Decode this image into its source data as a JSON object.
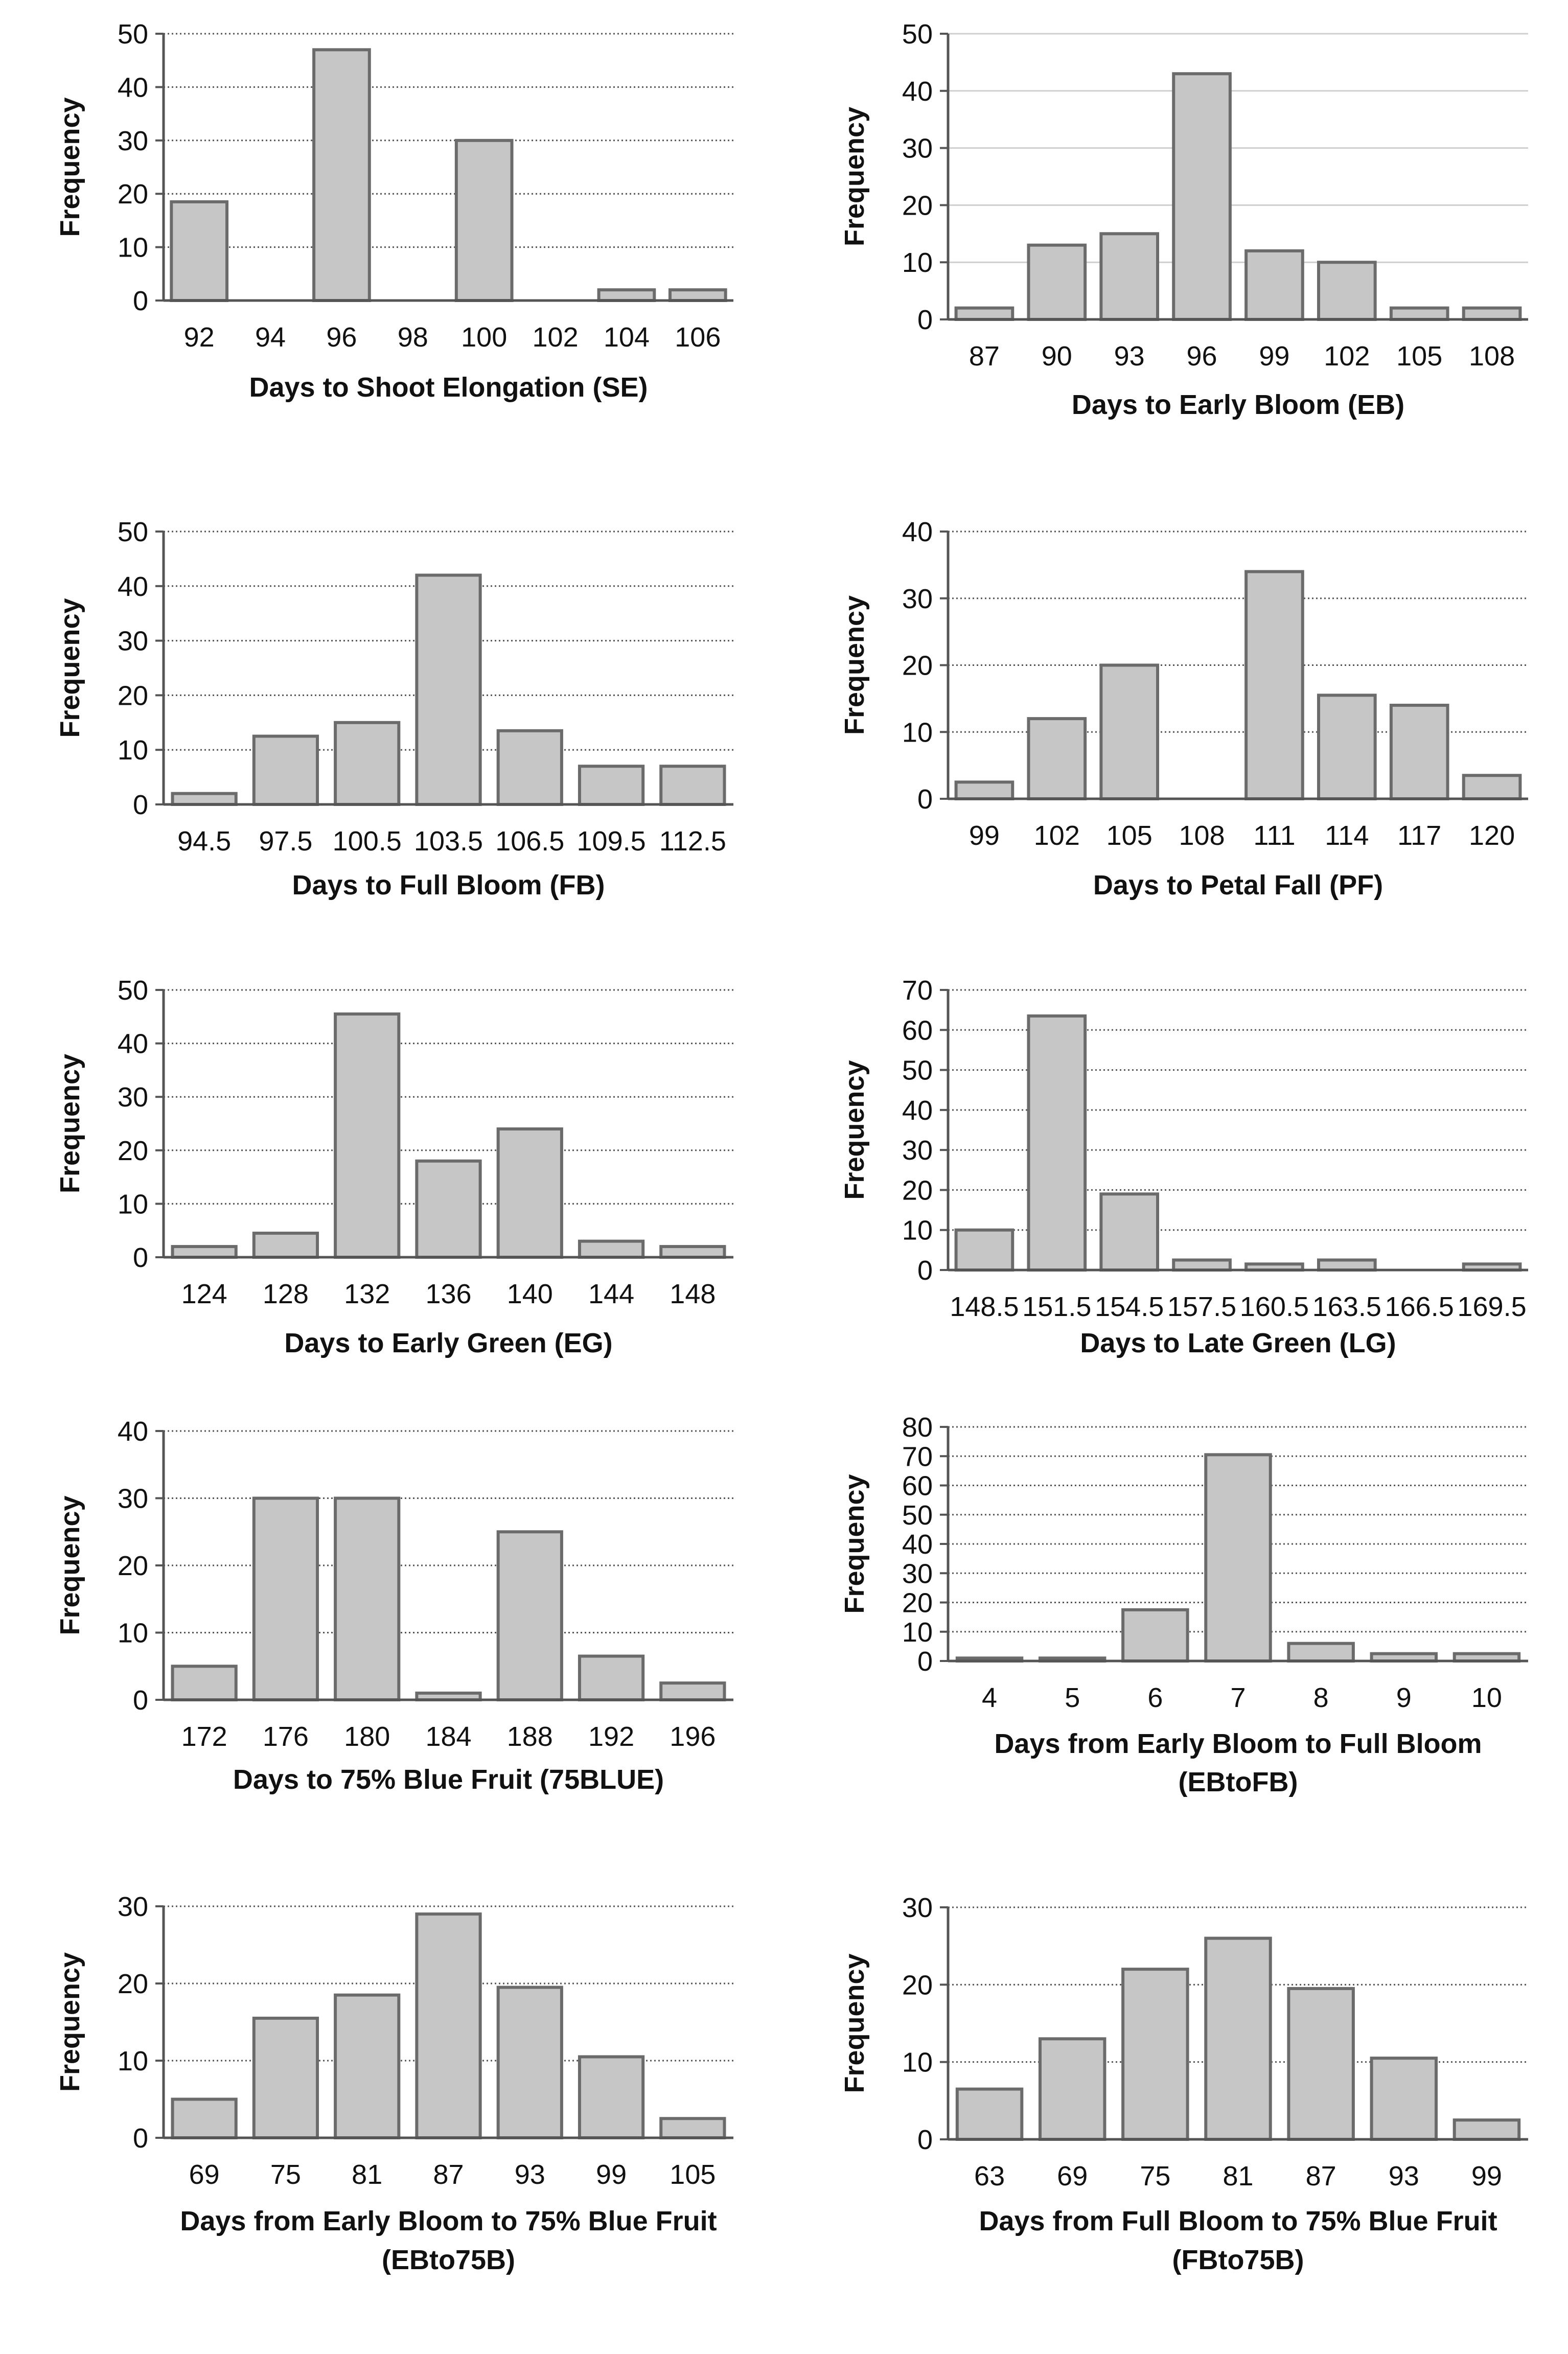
{
  "colors": {
    "bar_fill": "#c6c6c6",
    "bar_stroke": "#6b6b6b",
    "axis": "#555555",
    "grid_dotted": "#555555",
    "grid_solid": "#cfcfcf"
  },
  "chart_data": [
    {
      "type": "bar",
      "title": "",
      "xlabel": "Days to Shoot Elongation (SE)",
      "ylabel": "Frequency",
      "categories": [
        "92",
        "94",
        "96",
        "98",
        "100",
        "102",
        "104",
        "106"
      ],
      "values": [
        18.5,
        0,
        47,
        0,
        30,
        0,
        2,
        2
      ],
      "ylim": [
        0,
        50
      ],
      "yticks": [
        0,
        10,
        20,
        30,
        40,
        50
      ],
      "grid": "dotted"
    },
    {
      "type": "bar",
      "title": "",
      "xlabel": "Days to Early Bloom (EB)",
      "ylabel": "Frequency",
      "categories": [
        "87",
        "90",
        "93",
        "96",
        "99",
        "102",
        "105",
        "108"
      ],
      "values": [
        2,
        13,
        15,
        43,
        12,
        10,
        2,
        2
      ],
      "ylim": [
        0,
        50
      ],
      "yticks": [
        0,
        10,
        20,
        30,
        40,
        50
      ],
      "grid": "solid"
    },
    {
      "type": "bar",
      "title": "",
      "xlabel": "Days to Full Bloom (FB)",
      "ylabel": "Frequency",
      "categories": [
        "94.5",
        "97.5",
        "100.5",
        "103.5",
        "106.5",
        "109.5",
        "112.5"
      ],
      "values": [
        2,
        12.5,
        15,
        42,
        13.5,
        7,
        7
      ],
      "ylim": [
        0,
        50
      ],
      "yticks": [
        0,
        10,
        20,
        30,
        40,
        50
      ],
      "grid": "dotted"
    },
    {
      "type": "bar",
      "title": "",
      "xlabel": "Days to Petal Fall (PF)",
      "ylabel": "Frequency",
      "categories": [
        "99",
        "102",
        "105",
        "108",
        "111",
        "114",
        "117",
        "120"
      ],
      "values": [
        2.5,
        12,
        20,
        0,
        34,
        15.5,
        14,
        3.5
      ],
      "ylim": [
        0,
        40
      ],
      "yticks": [
        0,
        10,
        20,
        30,
        40
      ],
      "grid": "dotted"
    },
    {
      "type": "bar",
      "title": "",
      "xlabel": "Days to Early Green (EG)",
      "ylabel": "Frequency",
      "categories": [
        "124",
        "128",
        "132",
        "136",
        "140",
        "144",
        "148"
      ],
      "values": [
        2,
        4.5,
        45.5,
        18,
        24,
        3,
        2
      ],
      "ylim": [
        0,
        50
      ],
      "yticks": [
        0,
        10,
        20,
        30,
        40,
        50
      ],
      "grid": "dotted"
    },
    {
      "type": "bar",
      "title": "",
      "xlabel": "Days to Late Green (LG)",
      "ylabel": "Frequency",
      "categories": [
        "148.5",
        "151.5",
        "154.5",
        "157.5",
        "160.5",
        "163.5",
        "166.5",
        "169.5"
      ],
      "values": [
        10,
        63.5,
        19,
        2.5,
        1.5,
        2.5,
        0,
        1.5
      ],
      "ylim": [
        0,
        70
      ],
      "yticks": [
        0,
        10,
        20,
        30,
        40,
        50,
        60,
        70
      ],
      "grid": "dotted"
    },
    {
      "type": "bar",
      "title": "",
      "xlabel": "Days to 75% Blue Fruit (75BLUE)",
      "ylabel": "Frequency",
      "categories": [
        "172",
        "176",
        "180",
        "184",
        "188",
        "192",
        "196"
      ],
      "values": [
        5,
        30,
        30,
        1,
        25,
        6.5,
        2.5
      ],
      "ylim": [
        0,
        40
      ],
      "yticks": [
        0,
        10,
        20,
        30,
        40
      ],
      "grid": "dotted"
    },
    {
      "type": "bar",
      "title": "",
      "xlabel": "Days from Early Bloom to Full Bloom (EBtoFB)",
      "ylabel": "Frequency",
      "categories": [
        "4",
        "5",
        "6",
        "7",
        "8",
        "9",
        "10"
      ],
      "values": [
        1,
        1,
        17.5,
        70.5,
        6,
        2.5,
        2.5
      ],
      "ylim": [
        0,
        80
      ],
      "yticks": [
        0,
        10,
        20,
        30,
        40,
        50,
        60,
        70,
        80
      ],
      "grid": "dotted"
    },
    {
      "type": "bar",
      "title": "",
      "xlabel": "Days from Early Bloom to 75% Blue Fruit (EBto75B)",
      "ylabel": "Frequency",
      "categories": [
        "69",
        "75",
        "81",
        "87",
        "93",
        "99",
        "105"
      ],
      "values": [
        5,
        15.5,
        18.5,
        29,
        19.5,
        10.5,
        2.5
      ],
      "ylim": [
        0,
        30
      ],
      "yticks": [
        0,
        10,
        20,
        30
      ],
      "grid": "dotted"
    },
    {
      "type": "bar",
      "title": "",
      "xlabel": "Days from Full Bloom to 75% Blue Fruit (FBto75B)",
      "ylabel": "Frequency",
      "categories": [
        "63",
        "69",
        "75",
        "81",
        "87",
        "93",
        "99"
      ],
      "values": [
        6.5,
        13,
        22,
        26,
        19.5,
        10.5,
        2.5
      ],
      "ylim": [
        0,
        30
      ],
      "yticks": [
        0,
        10,
        20,
        30
      ],
      "grid": "dotted"
    }
  ]
}
